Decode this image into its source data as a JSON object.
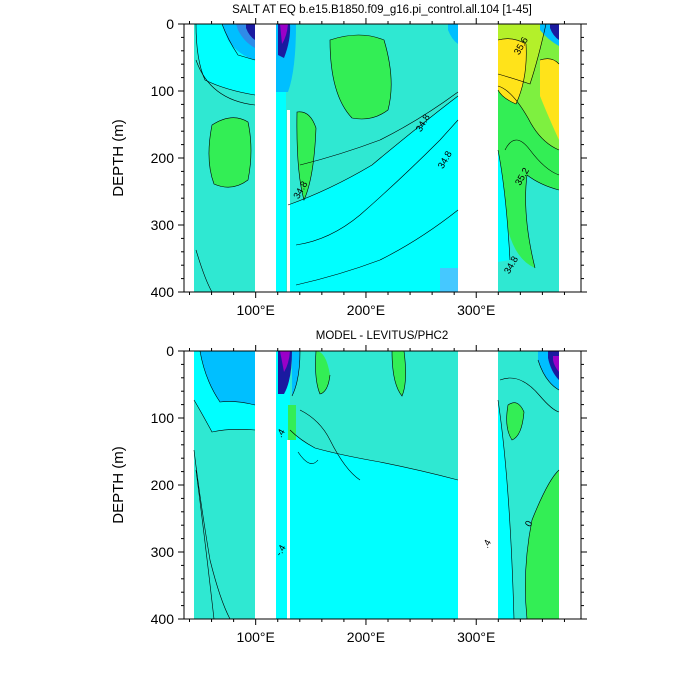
{
  "chart_data": [
    {
      "type": "contour",
      "title": "SALT AT EQ b.e15.B1850.f09_g16.pi_control.all.104 [1-45]",
      "ylabel": "DEPTH (m)",
      "xlabel": "",
      "xlim": [
        35,
        395
      ],
      "ylim": [
        400,
        0
      ],
      "x_ticks": [
        100,
        200,
        300
      ],
      "x_tick_labels": [
        "100°E",
        "200°E",
        "300°E"
      ],
      "y_ticks": [
        0,
        100,
        200,
        300,
        400
      ],
      "y_tick_labels": [
        "0",
        "100",
        "200",
        "300",
        "400"
      ],
      "land_gaps_lon": [
        [
          97,
          117
        ],
        [
          292,
          316
        ]
      ],
      "ocean_segments_lon": [
        [
          44,
          97
        ],
        [
          117,
          280
        ],
        [
          316,
          370
        ]
      ],
      "contour_labels": [
        {
          "text": "35.6",
          "lon": 343,
          "depth": 35
        },
        {
          "text": "34.8",
          "lon": 254,
          "depth": 150
        },
        {
          "text": "34.8",
          "lon": 274,
          "depth": 205
        },
        {
          "text": "34.8",
          "lon": 143,
          "depth": 250
        },
        {
          "text": "35.2",
          "lon": 344,
          "depth": 230
        },
        {
          "text": "34.8",
          "lon": 334,
          "depth": 362
        }
      ],
      "colors": {
        "background": "#2fe8d2",
        "cyan": "#00ffff",
        "light_blue": "#00bfff",
        "green": "#33ee55",
        "yellow": "#ffe31a",
        "dark": "#1a1aa0",
        "purple": "#9a00c8"
      }
    },
    {
      "type": "contour",
      "title": "MODEL - LEVITUS/PHC2",
      "ylabel": "DEPTH (m)",
      "xlabel": "",
      "xlim": [
        35,
        395
      ],
      "ylim": [
        400,
        0
      ],
      "x_ticks": [
        100,
        200,
        300
      ],
      "x_tick_labels": [
        "100°E",
        "200°E",
        "300°E"
      ],
      "y_ticks": [
        0,
        100,
        200,
        300,
        400
      ],
      "y_tick_labels": [
        "0",
        "100",
        "200",
        "300",
        "400"
      ],
      "land_gaps_lon": [
        [
          97,
          117
        ],
        [
          292,
          316
        ]
      ],
      "ocean_segments_lon": [
        [
          44,
          97
        ],
        [
          117,
          280
        ],
        [
          316,
          370
        ]
      ],
      "contour_labels": [
        {
          "text": ".4",
          "lon": 125,
          "depth": 125
        },
        {
          "text": "-.4",
          "lon": 125,
          "depth": 300
        },
        {
          "text": "0",
          "lon": 350,
          "depth": 260
        },
        {
          "text": ".4",
          "lon": 312,
          "depth": 290
        }
      ],
      "colors": {
        "background": "#2fe8d2",
        "cyan": "#00ffff",
        "light_blue": "#00bfff",
        "green": "#33ee55",
        "dark": "#1a1aa0",
        "purple": "#9a00c8"
      }
    }
  ]
}
